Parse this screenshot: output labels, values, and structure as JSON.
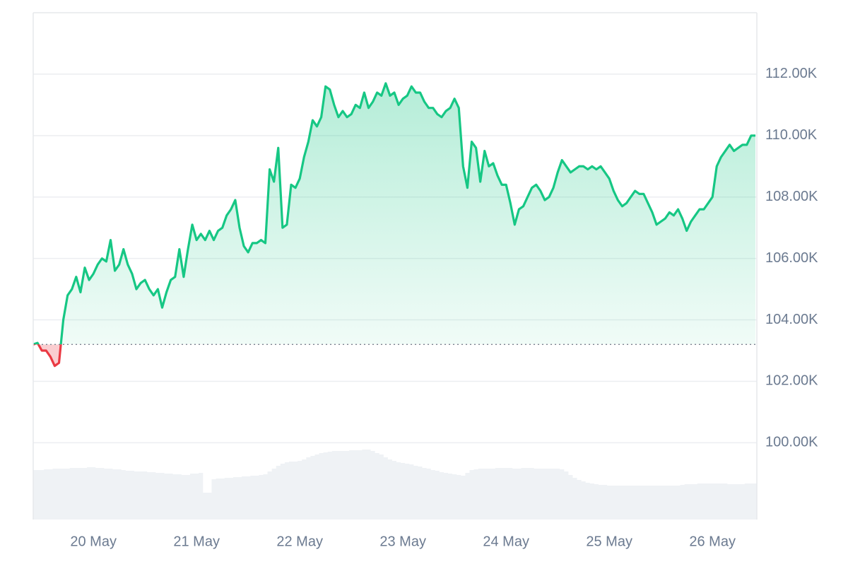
{
  "chart_data": {
    "type": "line",
    "categories": [
      null,
      null,
      null,
      null,
      null,
      null,
      null,
      null,
      null,
      null,
      null,
      null,
      null,
      null,
      "20 May",
      null,
      null,
      null,
      null,
      null,
      null,
      null,
      null,
      null,
      null,
      null,
      null,
      null,
      null,
      null,
      null,
      null,
      null,
      null,
      null,
      null,
      null,
      null,
      "21 May",
      null,
      null,
      null,
      null,
      null,
      null,
      null,
      null,
      null,
      null,
      null,
      null,
      null,
      null,
      null,
      null,
      null,
      null,
      null,
      null,
      null,
      null,
      null,
      "22 May",
      null,
      null,
      null,
      null,
      null,
      null,
      null,
      null,
      null,
      null,
      null,
      null,
      null,
      null,
      null,
      null,
      null,
      null,
      null,
      null,
      null,
      null,
      null,
      "23 May",
      null,
      null,
      null,
      null,
      null,
      null,
      null,
      null,
      null,
      null,
      null,
      null,
      null,
      null,
      null,
      null,
      null,
      null,
      null,
      null,
      null,
      null,
      null,
      "24 May",
      null,
      null,
      null,
      null,
      null,
      null,
      null,
      null,
      null,
      null,
      null,
      null,
      null,
      null,
      null,
      null,
      null,
      null,
      null,
      null,
      null,
      null,
      null,
      "25 May",
      null,
      null,
      null,
      null,
      null,
      null,
      null,
      null,
      null,
      null,
      null,
      null,
      null,
      null,
      null,
      null,
      null,
      null,
      null,
      null,
      null,
      null,
      null,
      "26 May",
      null,
      null,
      null,
      null,
      null,
      null,
      null,
      null,
      null,
      null
    ],
    "values": [
      103200,
      103250,
      103000,
      103000,
      102800,
      102500,
      102600,
      104000,
      104800,
      105000,
      105400,
      104900,
      105700,
      105300,
      105500,
      105800,
      106000,
      105900,
      106600,
      105600,
      105800,
      106300,
      105800,
      105500,
      105000,
      105200,
      105300,
      105000,
      104800,
      105000,
      104400,
      104900,
      105300,
      105400,
      106300,
      105400,
      106300,
      107100,
      106600,
      106800,
      106600,
      106900,
      106600,
      106900,
      107000,
      107400,
      107600,
      107900,
      107000,
      106400,
      106200,
      106500,
      106500,
      106600,
      106500,
      108900,
      108500,
      109600,
      107000,
      107100,
      108400,
      108300,
      108600,
      109300,
      109800,
      110500,
      110300,
      110600,
      111600,
      111500,
      111000,
      110600,
      110800,
      110600,
      110700,
      111000,
      110900,
      111400,
      110900,
      111100,
      111400,
      111300,
      111700,
      111300,
      111400,
      111000,
      111200,
      111300,
      111600,
      111400,
      111400,
      111100,
      110900,
      110900,
      110700,
      110600,
      110800,
      110900,
      111200,
      110900,
      109000,
      108300,
      109800,
      109600,
      108500,
      109500,
      109000,
      109100,
      108700,
      108400,
      108400,
      107800,
      107100,
      107600,
      107700,
      108000,
      108300,
      108400,
      108200,
      107900,
      108000,
      108300,
      108800,
      109200,
      109000,
      108800,
      108900,
      109000,
      109000,
      108900,
      109000,
      108900,
      109000,
      108800,
      108600,
      108200,
      107900,
      107700,
      107800,
      108000,
      108200,
      108100,
      108100,
      107800,
      107500,
      107100,
      107200,
      107300,
      107500,
      107400,
      107600,
      107300,
      106900,
      107200,
      107400,
      107600,
      107600,
      107800,
      108000,
      109000,
      109300,
      109500,
      109700,
      109500,
      109600,
      109700,
      109700,
      110000,
      110000
    ],
    "baseline": 103200,
    "up_color": "#16c784",
    "down_color": "#ea3943",
    "volume": {
      "color": "#eff2f5",
      "y2lim": [
        0,
        120
      ],
      "values": [
        70,
        70,
        70,
        71,
        71,
        72,
        72,
        72,
        72,
        73,
        73,
        73,
        73,
        74,
        74,
        73,
        73,
        72,
        72,
        71,
        71,
        70,
        69,
        69,
        68,
        68,
        68,
        67,
        67,
        66,
        66,
        65,
        65,
        64,
        64,
        63,
        63,
        65,
        65,
        66,
        38,
        38,
        57,
        58,
        58,
        59,
        59,
        60,
        60,
        61,
        61,
        62,
        62,
        63,
        64,
        68,
        72,
        76,
        79,
        81,
        82,
        82,
        83,
        85,
        88,
        90,
        92,
        94,
        95,
        96,
        97,
        97,
        97,
        97,
        98,
        98,
        98,
        99,
        99,
        97,
        94,
        92,
        88,
        85,
        83,
        81,
        80,
        79,
        78,
        76,
        75,
        73,
        72,
        70,
        69,
        67,
        66,
        65,
        64,
        63,
        62,
        66,
        70,
        71,
        72,
        72,
        72,
        72,
        73,
        73,
        73,
        73,
        72,
        72,
        73,
        73,
        73,
        72,
        72,
        72,
        72,
        72,
        72,
        71,
        68,
        63,
        59,
        56,
        54,
        52,
        51,
        50,
        49,
        49,
        48,
        48,
        48,
        48,
        48,
        48,
        48,
        48,
        48,
        48,
        48,
        48,
        48,
        48,
        48,
        48,
        48,
        49,
        50,
        50,
        50,
        51,
        51,
        51,
        51,
        51,
        51,
        51,
        50,
        50,
        50,
        50,
        51,
        51,
        51
      ]
    },
    "ylim": [
      97500,
      114000
    ],
    "yticks": [
      {
        "value": 100000,
        "label": "100.00K"
      },
      {
        "value": 102000,
        "label": "102.00K"
      },
      {
        "value": 104000,
        "label": "104.00K"
      },
      {
        "value": 106000,
        "label": "106.00K"
      },
      {
        "value": 108000,
        "label": "108.00K"
      },
      {
        "value": 110000,
        "label": "110.00K"
      },
      {
        "value": 112000,
        "label": "112.00K"
      }
    ],
    "grid": true
  }
}
